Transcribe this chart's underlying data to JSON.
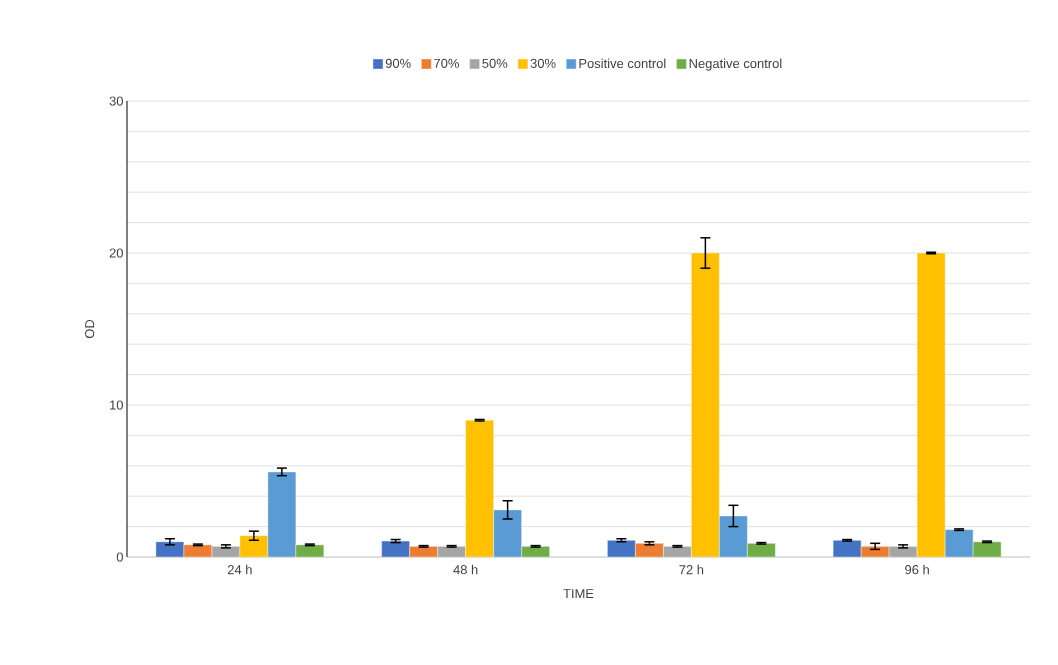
{
  "chart_data": {
    "type": "bar",
    "xlabel": "TIME",
    "ylabel": "OD",
    "categories": [
      "24 h",
      "48 h",
      "72 h",
      "96 h"
    ],
    "series": [
      {
        "name": "90%",
        "color": "#4472c4",
        "values": [
          1.0,
          1.05,
          1.1,
          1.1
        ],
        "errors": [
          0.2,
          0.1,
          0.1,
          0.05
        ]
      },
      {
        "name": "70%",
        "color": "#ed7d31",
        "values": [
          0.8,
          0.7,
          0.9,
          0.7
        ],
        "errors": [
          0.05,
          0.05,
          0.1,
          0.2
        ]
      },
      {
        "name": "50%",
        "color": "#a5a5a5",
        "values": [
          0.7,
          0.7,
          0.7,
          0.7
        ],
        "errors": [
          0.1,
          0.05,
          0.05,
          0.1
        ]
      },
      {
        "name": "30%",
        "color": "#ffc000",
        "values": [
          1.4,
          9.0,
          20.0,
          20.0
        ],
        "errors": [
          0.3,
          0.05,
          1.0,
          0.05
        ]
      },
      {
        "name": "Positive control",
        "color": "#5b9bd5",
        "values": [
          5.6,
          3.1,
          2.7,
          1.8
        ],
        "errors": [
          0.25,
          0.6,
          0.7,
          0.05
        ]
      },
      {
        "name": "Negative control",
        "color": "#70ad47",
        "values": [
          0.8,
          0.7,
          0.9,
          1.0
        ],
        "errors": [
          0.05,
          0.05,
          0.05,
          0.05
        ]
      }
    ],
    "ylim": [
      0,
      30
    ],
    "yticks": [
      0,
      {
        "value": 2,
        "label": null
      },
      {
        "value": 4,
        "label": null
      },
      {
        "value": 6,
        "label": null
      },
      {
        "value": 8,
        "label": null
      },
      10,
      {
        "value": 12,
        "label": null
      },
      {
        "value": 14,
        "label": null
      },
      {
        "value": 16,
        "label": null
      },
      {
        "value": 18,
        "label": null
      },
      20,
      {
        "value": 22,
        "label": null
      },
      {
        "value": 24,
        "label": null
      },
      {
        "value": 26,
        "label": null
      },
      {
        "value": 28,
        "label": null
      },
      30
    ],
    "grid": "y",
    "legend": "top"
  }
}
